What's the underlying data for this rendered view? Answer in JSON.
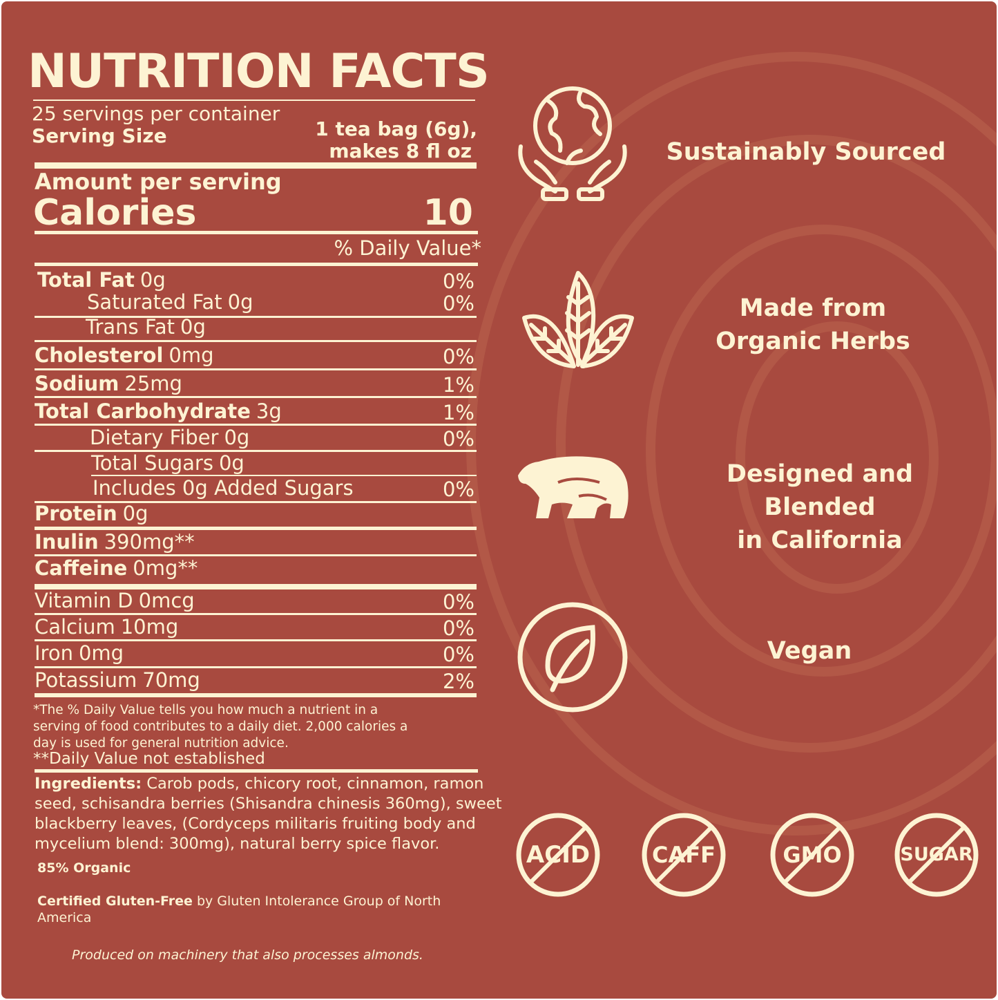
{
  "colors": {
    "background": "#a84a3f",
    "text": "#fdf3d3"
  },
  "label": {
    "title": "NUTRITION FACTS",
    "servings": "25 servings per container",
    "serving_size_label": "Serving Size",
    "serving_size_line1": "1 tea bag (6g),",
    "serving_size_line2": "makes 8 fl oz",
    "amount_per_serving": "Amount per serving",
    "calories_label": "Calories",
    "calories_value": "10",
    "daily_value_header": "% Daily Value*",
    "rows": [
      {
        "name": "Total Fat",
        "amount": "0g",
        "dv": "0%"
      },
      {
        "name": "Saturated Fat",
        "amount": "0g",
        "dv": "0%"
      },
      {
        "name": "Trans Fat",
        "amount": "0g",
        "dv": ""
      },
      {
        "name": "Cholesterol",
        "amount": "0mg",
        "dv": "0%"
      },
      {
        "name": "Sodium",
        "amount": "25mg",
        "dv": "1%"
      },
      {
        "name": "Total Carbohydrate",
        "amount": "3g",
        "dv": "1%"
      },
      {
        "name": "Dietary Fiber",
        "amount": "0g",
        "dv": "0%"
      },
      {
        "name": "Total Sugars",
        "amount": "0g",
        "dv": ""
      },
      {
        "name": "Includes 0g Added Sugars",
        "amount": "",
        "dv": "0%"
      },
      {
        "name": "Protein",
        "amount": "0g",
        "dv": ""
      },
      {
        "name": "Inulin",
        "amount": "390mg**",
        "dv": ""
      },
      {
        "name": "Caffeine",
        "amount": "0mg**",
        "dv": ""
      },
      {
        "name": "Vitamin D",
        "amount": "0mcg",
        "dv": "0%"
      },
      {
        "name": "Calcium",
        "amount": "10mg",
        "dv": "0%"
      },
      {
        "name": "Iron",
        "amount": "0mg",
        "dv": "0%"
      },
      {
        "name": "Potassium",
        "amount": "70mg",
        "dv": "2%"
      }
    ],
    "footnote1": "*The % Daily Value tells you how much a nutrient in a serving of food contributes to a daily diet. 2,000 calories a day is used for general nutrition advice.",
    "footnote2": "**Daily Value not established",
    "ingredients_label": "Ingredients:",
    "ingredients": " Carob pods, chicory root, cinnamon, ramon seed, schisandra berries (Shisandra chinesis 360mg), sweet blackberry leaves, (Cordyceps militaris fruiting body and mycelium blend: 300mg), natural berry spice flavor.",
    "organic": "85% Organic",
    "gluten_bold": "Certified Gluten-Free",
    "gluten_rest": " by Gluten Intolerance Group of North America",
    "allergen": "Produced on machinery that also processes almonds."
  },
  "features": [
    {
      "icon": "hands-globe-icon",
      "line1": "Sustainably Sourced",
      "line2": ""
    },
    {
      "icon": "leaves-icon",
      "line1": "Made from",
      "line2": "Organic Herbs"
    },
    {
      "icon": "bear-icon",
      "line1": "Designed and Blended",
      "line2": "in California"
    },
    {
      "icon": "leaf-circle-icon",
      "line1": "Vegan",
      "line2": ""
    }
  ],
  "badges": [
    "ACID",
    "CAFF",
    "GMO",
    "SUGAR"
  ]
}
